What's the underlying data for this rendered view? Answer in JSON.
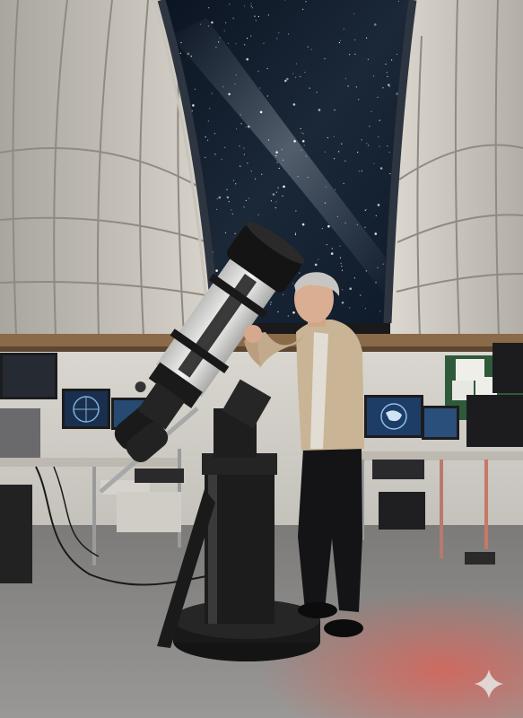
{
  "scene": {
    "subject": "observatory",
    "watermark_icon": "sparkle-icon"
  },
  "colors": {
    "sky": "#0d1826",
    "dome_panel": "#c9c4bc",
    "dome_rib": "#8f8a82",
    "floor": "#8d8c8a",
    "telescope_tube": "#e8e8e6",
    "red_glow": "#e0453a",
    "monitor_screen": "#1e3e6a"
  }
}
